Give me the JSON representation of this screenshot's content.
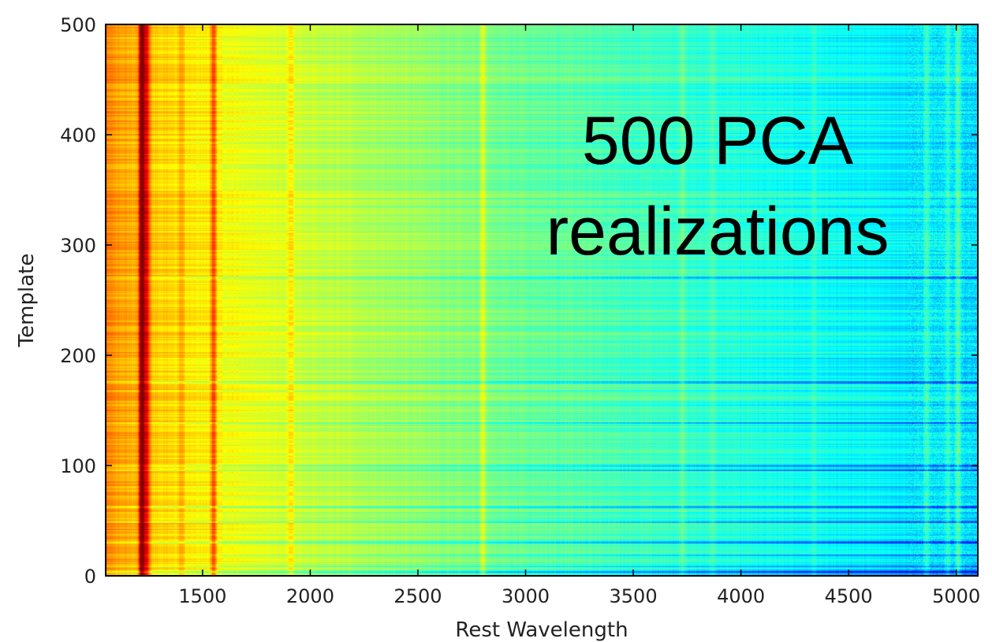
{
  "chart_data": {
    "type": "heatmap",
    "xlabel": "Rest Wavelength",
    "ylabel": "Template",
    "xlim": [
      1050,
      5100
    ],
    "ylim": [
      0,
      500
    ],
    "xticks": [
      1500,
      2000,
      2500,
      3000,
      3500,
      4000,
      4500,
      5000
    ],
    "yticks": [
      0,
      100,
      200,
      300,
      400,
      500
    ],
    "colormap": "jet",
    "rows": 500,
    "annotation": [
      "500 PCA",
      "realizations"
    ],
    "emission_features": [
      {
        "wavelength": 1216,
        "strength": 0.35
      },
      {
        "wavelength": 1240,
        "strength": 0.2
      },
      {
        "wavelength": 1400,
        "strength": 0.06
      },
      {
        "wavelength": 1549,
        "strength": 0.18
      },
      {
        "wavelength": 1909,
        "strength": 0.08
      },
      {
        "wavelength": 2800,
        "strength": 0.1
      },
      {
        "wavelength": 3727,
        "strength": 0.05
      },
      {
        "wavelength": 3869,
        "strength": 0.04
      },
      {
        "wavelength": 4340,
        "strength": 0.04
      },
      {
        "wavelength": 4861,
        "strength": 0.08
      },
      {
        "wavelength": 4959,
        "strength": 0.08
      },
      {
        "wavelength": 5007,
        "strength": 0.12
      }
    ],
    "dark_templates": [
      3,
      8,
      18,
      30,
      48,
      62,
      95,
      99,
      138,
      175,
      270
    ]
  }
}
